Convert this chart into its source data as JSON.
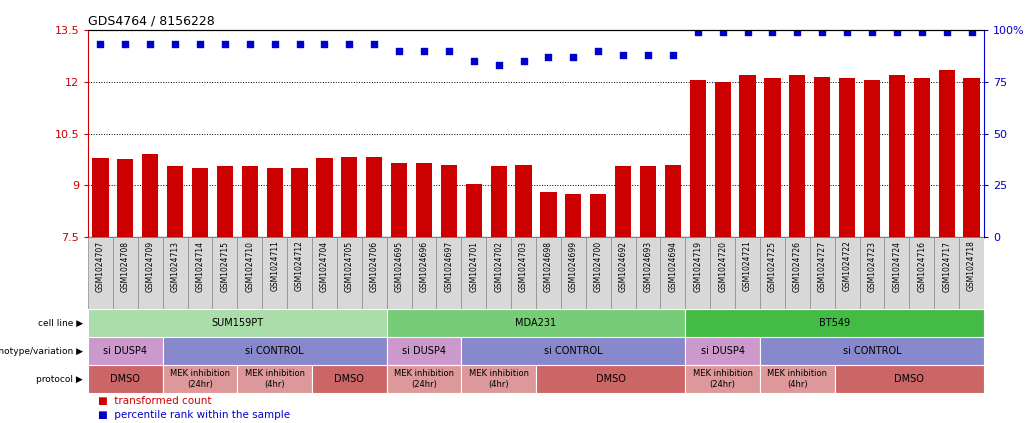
{
  "title": "GDS4764 / 8156228",
  "samples": [
    "GSM1024707",
    "GSM1024708",
    "GSM1024709",
    "GSM1024713",
    "GSM1024714",
    "GSM1024715",
    "GSM1024710",
    "GSM1024711",
    "GSM1024712",
    "GSM1024704",
    "GSM1024705",
    "GSM1024706",
    "GSM1024695",
    "GSM1024696",
    "GSM1024697",
    "GSM1024701",
    "GSM1024702",
    "GSM1024703",
    "GSM1024698",
    "GSM1024699",
    "GSM1024700",
    "GSM1024692",
    "GSM1024693",
    "GSM1024694",
    "GSM1024719",
    "GSM1024720",
    "GSM1024721",
    "GSM1024725",
    "GSM1024726",
    "GSM1024727",
    "GSM1024722",
    "GSM1024723",
    "GSM1024724",
    "GSM1024716",
    "GSM1024717",
    "GSM1024718"
  ],
  "bar_values": [
    9.8,
    9.75,
    9.9,
    9.55,
    9.5,
    9.55,
    9.55,
    9.5,
    9.5,
    9.8,
    9.82,
    9.82,
    9.65,
    9.65,
    9.6,
    9.05,
    9.55,
    9.6,
    8.8,
    8.75,
    8.75,
    9.55,
    9.55,
    9.6,
    12.05,
    12.0,
    12.2,
    12.1,
    12.2,
    12.15,
    12.1,
    12.05,
    12.2,
    12.1,
    12.35,
    12.1
  ],
  "percentile_values": [
    93,
    93,
    93,
    93,
    93,
    93,
    93,
    93,
    93,
    93,
    93,
    93,
    90,
    90,
    90,
    85,
    83,
    85,
    87,
    87,
    90,
    88,
    88,
    88,
    99,
    99,
    99,
    99,
    99,
    99,
    99,
    99,
    99,
    99,
    99,
    99
  ],
  "ymin": 7.5,
  "ymax": 13.5,
  "yticks": [
    7.5,
    9.0,
    10.5,
    12.0,
    13.5
  ],
  "ytick_labels": [
    "7.5",
    "9",
    "10.5",
    "12",
    "13.5"
  ],
  "right_yticks": [
    0,
    25,
    50,
    75,
    100
  ],
  "right_ytick_labels": [
    "0",
    "25",
    "50",
    "75",
    "100%"
  ],
  "bar_color": "#cc0000",
  "dot_color": "#0000cc",
  "bar_bottom": 7.5,
  "cell_line_groups": [
    {
      "label": "SUM159PT",
      "start": 0,
      "end": 11,
      "color": "#aaddaa"
    },
    {
      "label": "MDA231",
      "start": 12,
      "end": 23,
      "color": "#77cc77"
    },
    {
      "label": "BT549",
      "start": 24,
      "end": 35,
      "color": "#44bb44"
    }
  ],
  "genotype_groups": [
    {
      "label": "si DUSP4",
      "start": 0,
      "end": 2,
      "color": "#cc99cc"
    },
    {
      "label": "si CONTROL",
      "start": 3,
      "end": 11,
      "color": "#8888cc"
    },
    {
      "label": "si DUSP4",
      "start": 12,
      "end": 14,
      "color": "#cc99cc"
    },
    {
      "label": "si CONTROL",
      "start": 15,
      "end": 23,
      "color": "#8888cc"
    },
    {
      "label": "si DUSP4",
      "start": 24,
      "end": 26,
      "color": "#cc99cc"
    },
    {
      "label": "si CONTROL",
      "start": 27,
      "end": 35,
      "color": "#8888cc"
    }
  ],
  "protocol_groups": [
    {
      "label": "DMSO",
      "start": 0,
      "end": 2,
      "color": "#cc6666"
    },
    {
      "label": "MEK inhibition\n(24hr)",
      "start": 3,
      "end": 5,
      "color": "#dd9999"
    },
    {
      "label": "MEK inhibition\n(4hr)",
      "start": 6,
      "end": 8,
      "color": "#dd9999"
    },
    {
      "label": "DMSO",
      "start": 9,
      "end": 11,
      "color": "#cc6666"
    },
    {
      "label": "MEK inhibition\n(24hr)",
      "start": 12,
      "end": 14,
      "color": "#dd9999"
    },
    {
      "label": "MEK inhibition\n(4hr)",
      "start": 15,
      "end": 17,
      "color": "#dd9999"
    },
    {
      "label": "DMSO",
      "start": 18,
      "end": 23,
      "color": "#cc6666"
    },
    {
      "label": "MEK inhibition\n(24hr)",
      "start": 24,
      "end": 26,
      "color": "#dd9999"
    },
    {
      "label": "MEK inhibition\n(4hr)",
      "start": 27,
      "end": 29,
      "color": "#dd9999"
    },
    {
      "label": "DMSO",
      "start": 30,
      "end": 35,
      "color": "#cc6666"
    }
  ],
  "row_labels": [
    "cell line",
    "genotype/variation",
    "protocol"
  ],
  "tick_color": "#cc0000",
  "right_tick_color": "#0000cc",
  "sample_box_color": "#d8d8d8",
  "sample_box_edge": "#888888"
}
